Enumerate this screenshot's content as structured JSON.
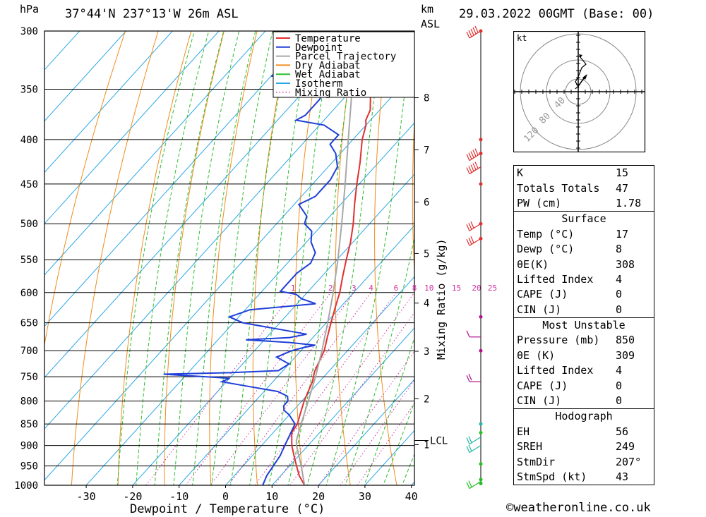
{
  "header": {
    "location": "37°44'N  237°13'W  26m  ASL",
    "date": "29.03.2022  00GMT  (Base: 00)",
    "hpa_label": "hPa",
    "km_label": "km",
    "asl_label": "ASL"
  },
  "chart_data": {
    "type": "skew-t",
    "xlabel": "Dewpoint / Temperature (°C)",
    "secondary_ylabel": "Mixing Ratio (g/kg)",
    "xlim": [
      -40,
      40
    ],
    "ylim": [
      1000,
      300
    ],
    "x_ticks": [
      -30,
      -20,
      -10,
      0,
      10,
      20,
      30,
      40
    ],
    "pressure_levels": [
      300,
      350,
      400,
      450,
      500,
      550,
      600,
      650,
      700,
      750,
      800,
      850,
      900,
      950,
      1000
    ],
    "km_levels": [
      {
        "km": "8",
        "p": 358
      },
      {
        "km": "7",
        "p": 411
      },
      {
        "km": "6",
        "p": 472
      },
      {
        "km": "5",
        "p": 541
      },
      {
        "km": "4",
        "p": 617
      },
      {
        "km": "3",
        "p": 701
      },
      {
        "km": "2",
        "p": 795
      },
      {
        "km": "1",
        "p": 898
      }
    ],
    "lcl": {
      "label": "LCL",
      "p": 888
    },
    "mixing_ratio_labels": [
      "1",
      "2",
      "3",
      "4",
      "6",
      "8",
      "10",
      "15",
      "20",
      "25"
    ],
    "mixing_ratio_values": [
      1,
      2,
      3,
      4,
      6,
      8,
      10,
      15,
      20,
      25
    ],
    "legend": [
      {
        "name": "Temperature",
        "color": "#e0302f"
      },
      {
        "name": "Dewpoint",
        "color": "#1f3fd8"
      },
      {
        "name": "Parcel Trajectory",
        "color": "#a8a8a8"
      },
      {
        "name": "Dry Adiabat",
        "color": "#f08c1c"
      },
      {
        "name": "Wet Adiabat",
        "color": "#2ebd2e"
      },
      {
        "name": "Isotherm",
        "color": "#2aa7e6"
      },
      {
        "name": "Mixing Ratio",
        "color": "#d030a0"
      }
    ],
    "series": [
      {
        "name": "Temperature",
        "color": "#e0302f",
        "points": [
          [
            1000,
            17
          ],
          [
            975,
            14
          ],
          [
            950,
            11.5
          ],
          [
            925,
            9
          ],
          [
            900,
            6.5
          ],
          [
            870,
            4
          ],
          [
            850,
            3.5
          ],
          [
            825,
            2
          ],
          [
            800,
            0.5
          ],
          [
            780,
            -0.5
          ],
          [
            760,
            -1.5
          ],
          [
            740,
            -3
          ],
          [
            720,
            -4
          ],
          [
            700,
            -5
          ],
          [
            675,
            -7
          ],
          [
            650,
            -9
          ],
          [
            625,
            -11
          ],
          [
            600,
            -13
          ],
          [
            575,
            -15.5
          ],
          [
            550,
            -18
          ],
          [
            525,
            -20.5
          ],
          [
            500,
            -23.5
          ],
          [
            475,
            -27
          ],
          [
            450,
            -30.5
          ],
          [
            425,
            -34
          ],
          [
            400,
            -38
          ],
          [
            385,
            -40
          ],
          [
            380,
            -41
          ],
          [
            370,
            -42
          ],
          [
            350,
            -46
          ],
          [
            340,
            -47.5
          ],
          [
            330,
            -46
          ],
          [
            315,
            -49
          ],
          [
            300,
            -52
          ]
        ]
      },
      {
        "name": "Dewpoint",
        "color": "#1f3fd8",
        "points": [
          [
            1000,
            8
          ],
          [
            975,
            7
          ],
          [
            950,
            6.5
          ],
          [
            925,
            6
          ],
          [
            900,
            5
          ],
          [
            875,
            4
          ],
          [
            850,
            3
          ],
          [
            830,
            0
          ],
          [
            820,
            -2
          ],
          [
            810,
            -3
          ],
          [
            800,
            -3
          ],
          [
            790,
            -4
          ],
          [
            780,
            -7
          ],
          [
            770,
            -14
          ],
          [
            760,
            -21
          ],
          [
            753,
            -20
          ],
          [
            745,
            -35
          ],
          [
            742,
            -21
          ],
          [
            738,
            -11
          ],
          [
            725,
            -10
          ],
          [
            712,
            -14
          ],
          [
            700,
            -12
          ],
          [
            694,
            -10
          ],
          [
            690,
            -8
          ],
          [
            685,
            -14
          ],
          [
            680,
            -24
          ],
          [
            676,
            -15
          ],
          [
            670,
            -12
          ],
          [
            660,
            -20
          ],
          [
            650,
            -28
          ],
          [
            640,
            -32
          ],
          [
            628,
            -29
          ],
          [
            618,
            -16
          ],
          [
            610,
            -20
          ],
          [
            603,
            -22
          ],
          [
            598,
            -26
          ],
          [
            580,
            -26
          ],
          [
            570,
            -26
          ],
          [
            555,
            -25
          ],
          [
            540,
            -26
          ],
          [
            525,
            -29
          ],
          [
            510,
            -31
          ],
          [
            500,
            -34
          ],
          [
            490,
            -35
          ],
          [
            475,
            -39
          ],
          [
            470,
            -38
          ],
          [
            465,
            -37
          ],
          [
            445,
            -37
          ],
          [
            430,
            -38
          ],
          [
            415,
            -41
          ],
          [
            405,
            -44
          ],
          [
            395,
            -44
          ],
          [
            385,
            -49
          ],
          [
            380,
            -56
          ],
          [
            375,
            -55
          ],
          [
            360,
            -55
          ],
          [
            345,
            -56
          ],
          [
            342,
            -58
          ],
          [
            338,
            -70
          ],
          [
            335,
            -66
          ],
          [
            320,
            -66
          ],
          [
            300,
            -66
          ]
        ]
      },
      {
        "name": "Parcel Trajectory",
        "color": "#a8a8a8",
        "points": [
          [
            1000,
            17
          ],
          [
            950,
            12.5
          ],
          [
            900,
            7.5
          ],
          [
            888,
            6.5
          ],
          [
            850,
            4.3
          ],
          [
            800,
            1.4
          ],
          [
            750,
            -1.8
          ],
          [
            700,
            -5.5
          ],
          [
            650,
            -9.7
          ],
          [
            600,
            -14.4
          ],
          [
            550,
            -19.8
          ],
          [
            500,
            -26
          ],
          [
            450,
            -33
          ],
          [
            400,
            -41
          ],
          [
            350,
            -50
          ],
          [
            320,
            -56
          ]
        ]
      }
    ],
    "wind_barbs": [
      {
        "p": 300,
        "dir": "SW",
        "kt": 45,
        "color": "#e0302f"
      },
      {
        "p": 415,
        "dir": "SW",
        "kt": 50,
        "color": "#e0302f"
      },
      {
        "p": 430,
        "dir": "SW",
        "kt": 50,
        "color": "#e0302f"
      },
      {
        "p": 500,
        "dir": "SW",
        "kt": 30,
        "color": "#e0302f"
      },
      {
        "p": 520,
        "dir": "SW",
        "kt": 25,
        "color": "#e0302f"
      },
      {
        "p": 675,
        "dir": "W",
        "kt": 10,
        "color": "#b0108c"
      },
      {
        "p": 760,
        "dir": "W",
        "kt": 20,
        "color": "#b0108c"
      },
      {
        "p": 880,
        "dir": "SW",
        "kt": 15,
        "color": "#20b8a0"
      },
      {
        "p": 900,
        "dir": "SW",
        "kt": 15,
        "color": "#20b8a0"
      },
      {
        "p": 990,
        "dir": "SW",
        "kt": 15,
        "color": "#20c020"
      }
    ],
    "hodograph": {
      "unit": "kt",
      "ring_labels": [
        "40",
        "80",
        "120"
      ]
    }
  },
  "indices": {
    "basic": [
      {
        "label": "K",
        "value": "15"
      },
      {
        "label": "Totals Totals",
        "value": "47"
      },
      {
        "label": "PW (cm)",
        "value": "1.78"
      }
    ],
    "surface": {
      "title": "Surface",
      "rows": [
        {
          "label": "Temp (°C)",
          "value": "17"
        },
        {
          "label": "Dewp (°C)",
          "value": "8"
        },
        {
          "label": "θE(K)",
          "value": "308"
        },
        {
          "label": "Lifted Index",
          "value": "4"
        },
        {
          "label": "CAPE (J)",
          "value": "0"
        },
        {
          "label": "CIN (J)",
          "value": "0"
        }
      ]
    },
    "most_unstable": {
      "title": "Most Unstable",
      "rows": [
        {
          "label": "Pressure (mb)",
          "value": "850"
        },
        {
          "label": "θE (K)",
          "value": "309"
        },
        {
          "label": "Lifted Index",
          "value": "4"
        },
        {
          "label": "CAPE (J)",
          "value": "0"
        },
        {
          "label": "CIN (J)",
          "value": "0"
        }
      ]
    },
    "hodograph": {
      "title": "Hodograph",
      "rows": [
        {
          "label": "EH",
          "value": "56"
        },
        {
          "label": "SREH",
          "value": "249"
        },
        {
          "label": "StmDir",
          "value": "207°"
        },
        {
          "label": "StmSpd (kt)",
          "value": "43"
        }
      ]
    }
  },
  "footer": {
    "copyright": "©weatheronline.co.uk"
  }
}
